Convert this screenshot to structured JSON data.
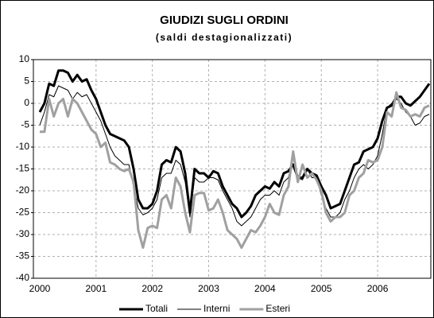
{
  "chart_data": {
    "type": "line",
    "title": "GIUDIZI SUGLI ORDINI",
    "subtitle": "(saldi destagionalizzati)",
    "categories": [
      "2000",
      null,
      null,
      null,
      null,
      null,
      null,
      null,
      null,
      null,
      null,
      null,
      "2001",
      null,
      null,
      null,
      null,
      null,
      null,
      null,
      null,
      null,
      null,
      null,
      "2002",
      null,
      null,
      null,
      null,
      null,
      null,
      null,
      null,
      null,
      null,
      null,
      "2003",
      null,
      null,
      null,
      null,
      null,
      null,
      null,
      null,
      null,
      null,
      null,
      "2004",
      null,
      null,
      null,
      null,
      null,
      null,
      null,
      null,
      null,
      null,
      null,
      "2005",
      null,
      null,
      null,
      null,
      null,
      null,
      null,
      null,
      null,
      null,
      null,
      "2006",
      null,
      null,
      null,
      null,
      null,
      null,
      null,
      null,
      null,
      null,
      null
    ],
    "series": [
      {
        "name": "Totali",
        "color": "#000000",
        "width": 3,
        "values": [
          -2,
          0,
          4.5,
          4,
          7.5,
          7.5,
          7,
          5,
          6.5,
          5,
          5.5,
          3,
          1,
          -2,
          -5,
          -7,
          -7.5,
          -8,
          -8.5,
          -10,
          -15,
          -22,
          -24,
          -24,
          -23,
          -20,
          -14,
          -13,
          -13.5,
          -10,
          -11,
          -16,
          -25,
          -15,
          -16,
          -16,
          -17,
          -15.5,
          -16,
          -19,
          -21,
          -23,
          -24,
          -26,
          -25,
          -23.5,
          -21,
          -20,
          -19,
          -19.5,
          -18,
          -19,
          -16,
          -15.5,
          -14,
          -17,
          -17,
          -15,
          -16,
          -16.5,
          -19,
          -21,
          -24,
          -23.5,
          -23,
          -20,
          -17,
          -14,
          -13.5,
          -11,
          -10.5,
          -10,
          -8,
          -4,
          -1,
          -0.5,
          1.5,
          1.5,
          0,
          -0.5,
          0.5,
          1.5,
          3,
          4.5
        ]
      },
      {
        "name": "Interni",
        "color": "#000000",
        "width": 1,
        "values": [
          -5,
          -2,
          2,
          1.5,
          4,
          3.5,
          3,
          1,
          2.5,
          1.5,
          2,
          0,
          -2,
          -4,
          -7,
          -10,
          -12,
          -13,
          -14,
          -14,
          -19,
          -24,
          -25.5,
          -25,
          -24,
          -22,
          -17,
          -16,
          -16,
          -13,
          -14,
          -18,
          -26,
          -17,
          -18,
          -18,
          -17,
          -17,
          -17.5,
          -20,
          -22,
          -24,
          -27,
          -28,
          -27,
          -26,
          -24,
          -22,
          -21,
          -21,
          -20,
          -21,
          -18,
          -17,
          -12,
          -17,
          -17.5,
          -15,
          -17,
          -17,
          -21,
          -24,
          -26,
          -26,
          -25,
          -22,
          -20,
          -17,
          -15,
          -14,
          -15,
          -14,
          -12,
          -7,
          -1,
          0,
          1,
          0,
          -2,
          -3,
          -5,
          -4.5,
          -3,
          -2.5
        ]
      },
      {
        "name": "Esteri",
        "color": "#a0a0a0",
        "width": 3,
        "values": [
          -6.5,
          -6.5,
          1,
          -3,
          0,
          1,
          -3,
          1,
          0,
          -2,
          -4,
          -6,
          -7,
          -10,
          -9,
          -13.5,
          -14,
          -15,
          -15.5,
          -15,
          -18,
          -29,
          -33,
          -28.5,
          -28,
          -28.5,
          -22,
          -21,
          -24,
          -17,
          -19,
          -25,
          -29.5,
          -21,
          -20.5,
          -20.5,
          -24.5,
          -24,
          -22,
          -25,
          -29,
          -30,
          -31,
          -33,
          -31,
          -29,
          -29.5,
          -28,
          -26,
          -23,
          -25,
          -25.5,
          -21,
          -19,
          -11,
          -18,
          -14,
          -17,
          -16,
          -17.5,
          -20,
          -25,
          -27,
          -26,
          -26,
          -25,
          -21,
          -20,
          -17,
          -16,
          -13,
          -13.5,
          -13,
          -10,
          -2,
          -3,
          2.5,
          -1,
          -1.5,
          -3,
          -2.5,
          -3,
          -1,
          -0.5
        ]
      }
    ],
    "ylim": [
      -40,
      10
    ],
    "yticks": [
      -40,
      -35,
      -30,
      -25,
      -20,
      -15,
      -10,
      -5,
      0,
      5,
      10
    ],
    "grid": true,
    "legend": "bottom"
  }
}
